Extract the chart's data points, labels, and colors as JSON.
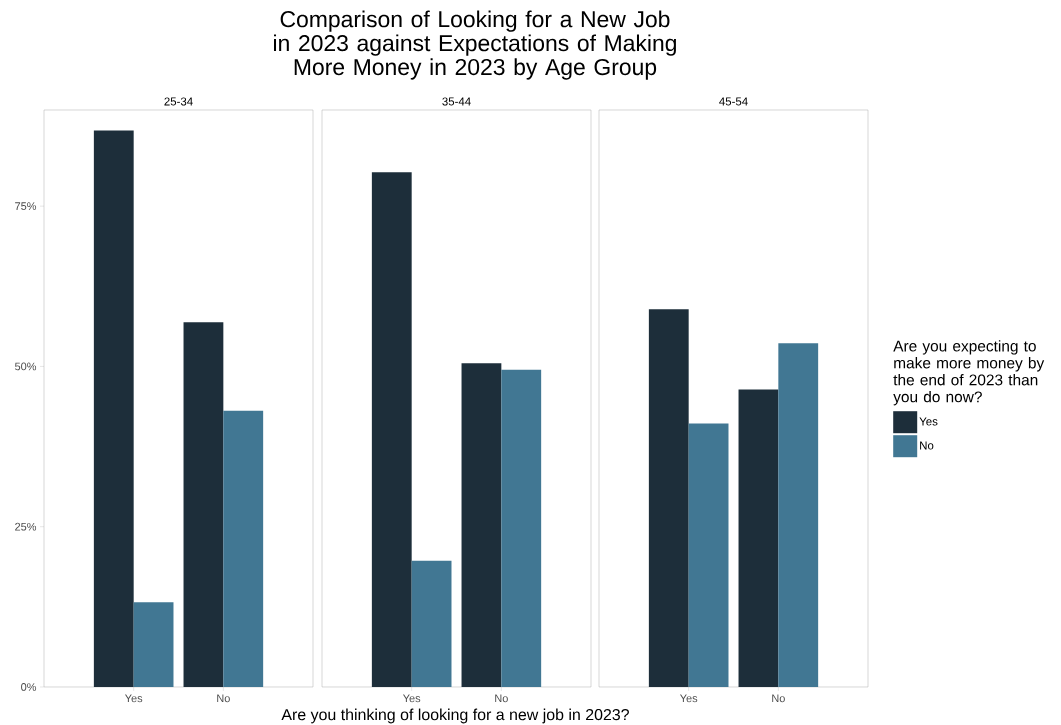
{
  "chart_data": [
    {
      "type": "bar",
      "subtitle": "25-34",
      "categories": [
        "Yes",
        "No"
      ],
      "series": [
        {
          "color": "#1d2e3a",
          "values": [
            86.8,
            56.9
          ]
        },
        {
          "color": "#417793",
          "values": [
            13.2,
            43.1
          ]
        }
      ],
      "ylim": [
        0,
        90
      ],
      "yticks": [
        {
          "value": 0,
          "label": "0%"
        },
        {
          "value": 25,
          "label": "25%"
        },
        {
          "value": 50,
          "label": "50%"
        },
        {
          "value": 75,
          "label": "75%"
        }
      ]
    },
    {
      "type": "bar",
      "title": "Comparison of Looking for a New Job in 2023 against Expectations of Making More Money in 2023 by Age Group",
      "subtitle": "35-44",
      "xlabel": "Are you thinking of looking for a new job in 2023?",
      "categories": [
        "Yes",
        "No"
      ],
      "series": [
        {
          "color": "#1d2e3a",
          "values": [
            80.3,
            50.5
          ]
        },
        {
          "color": "#417793",
          "values": [
            19.7,
            49.5
          ]
        }
      ],
      "ylim": [
        0,
        90
      ],
      "tick_labels": "x"
    },
    {
      "type": "bar",
      "subtitle": "45-54",
      "categories": [
        "Yes",
        "No"
      ],
      "legend": "right",
      "legend_title": "Are you expecting to make more money by the end of 2023 than you do now?",
      "series": [
        {
          "name": "Yes",
          "color": "#1d2e3a",
          "values": [
            58.9,
            46.4
          ]
        },
        {
          "name": "No",
          "color": "#417793",
          "values": [
            41.1,
            53.6
          ]
        }
      ],
      "ylim": [
        0,
        90
      ],
      "tick_labels": "x"
    }
  ]
}
